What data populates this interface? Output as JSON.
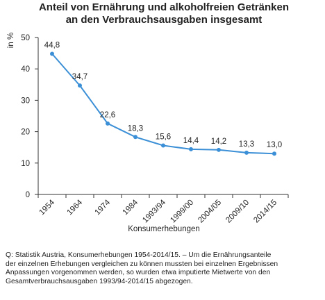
{
  "chart_data": {
    "type": "line",
    "title": [
      "Anteil von Ernährung und alkoholfreien Getränken",
      "an den Verbrauchsausgaben insgesamt"
    ],
    "xlabel": "Konsumerhebungen",
    "ylabel": "in %",
    "ylim": [
      0,
      50
    ],
    "yticks": [
      0,
      10,
      20,
      30,
      40,
      50
    ],
    "categories": [
      "1954",
      "1964",
      "1974",
      "1984",
      "1993/94",
      "1999/00",
      "2004/05",
      "2009/10",
      "2014/15"
    ],
    "series": [
      {
        "values": [
          44.8,
          34.7,
          22.6,
          18.3,
          15.6,
          14.4,
          14.2,
          13.3,
          13.0
        ],
        "labels": [
          "44,8",
          "34,7",
          "22,6",
          "18,3",
          "15,6",
          "14,4",
          "14,2",
          "13,3",
          "13,0"
        ]
      }
    ],
    "color": "#3b8fd6",
    "grid": false,
    "legend": "none"
  },
  "source_note": [
    "Q: Statistik Austria, Konsumerhebungen 1954-2014/15. – Um die Ernährungsanteile",
    "der einzelnen Erhebungen vergleichen zu können mussten bei einzelnen Ergebnissen",
    "Anpassungen vorgenommen werden, so wurden etwa imputierte Mietwerte von den",
    "Gesamtverbrauchsausgaben 1993/94-2014/15 abgezogen."
  ]
}
